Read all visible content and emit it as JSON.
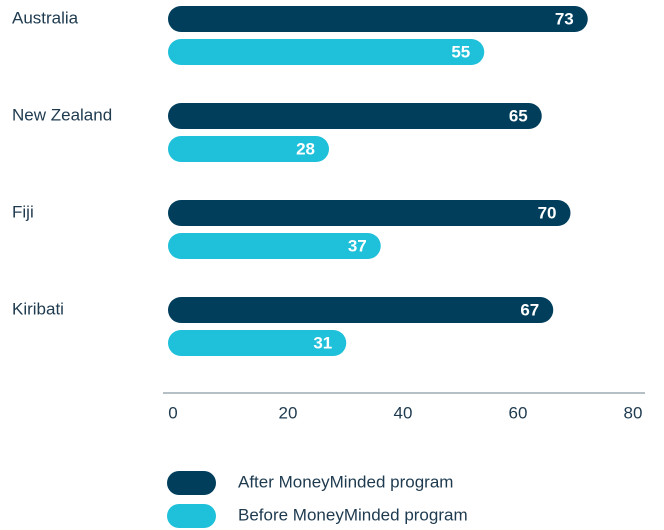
{
  "chart_data": {
    "type": "bar",
    "orientation": "horizontal",
    "categories": [
      "Australia",
      "New Zealand",
      "Fiji",
      "Kiribati"
    ],
    "series": [
      {
        "name": "After MoneyMinded program",
        "color": "#003e5c",
        "values": [
          73,
          65,
          70,
          67
        ]
      },
      {
        "name": "Before MoneyMinded program",
        "color": "#1fc0da",
        "values": [
          55,
          28,
          37,
          31
        ]
      }
    ],
    "xlim": [
      0,
      80
    ],
    "xticks": [
      0,
      20,
      40,
      60,
      80
    ],
    "grid": false,
    "legend": "bottom"
  }
}
